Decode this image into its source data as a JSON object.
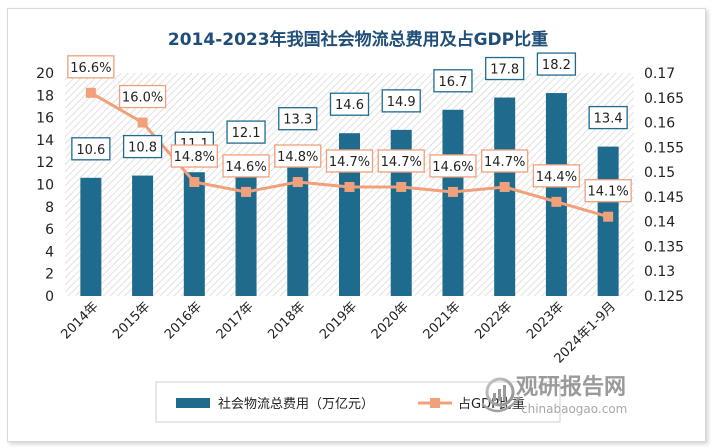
{
  "chart_data": {
    "type": "bar",
    "title": "2014-2023年我国社会物流总费用及占GDP比重",
    "categories": [
      "2014年",
      "2015年",
      "2016年",
      "2017年",
      "2018年",
      "2019年",
      "2020年",
      "2021年",
      "2022年",
      "2023年",
      "2024年1-9月"
    ],
    "series": [
      {
        "name": "社会物流总费用（万亿元）",
        "type": "bar",
        "axis": "left",
        "color": "#1f6b8e",
        "values": [
          10.6,
          10.8,
          11.1,
          12.1,
          13.3,
          14.6,
          14.9,
          16.7,
          17.8,
          18.2,
          13.4
        ],
        "labels": [
          "10.6",
          "10.8",
          "11.1",
          "12.1",
          "13.3",
          "14.6",
          "14.9",
          "16.7",
          "17.8",
          "18.2",
          "13.4"
        ]
      },
      {
        "name": "占GDP比重",
        "type": "line",
        "axis": "right",
        "color": "#f0a07a",
        "values": [
          0.166,
          0.16,
          0.148,
          0.146,
          0.148,
          0.147,
          0.147,
          0.146,
          0.147,
          0.144,
          0.141
        ],
        "labels": [
          "16.6%",
          "16.0%",
          "14.8%",
          "14.6%",
          "14.8%",
          "14.7%",
          "14.7%",
          "14.6%",
          "14.7%",
          "14.4%",
          "14.1%"
        ]
      }
    ],
    "y_left": {
      "range": [
        0,
        20
      ],
      "ticks": [
        "0",
        "2",
        "4",
        "6",
        "8",
        "10",
        "12",
        "14",
        "16",
        "18",
        "20"
      ]
    },
    "y_right": {
      "range": [
        0.125,
        0.17
      ],
      "ticks": [
        "0.125",
        "0.13",
        "0.135",
        "0.14",
        "0.145",
        "0.15",
        "0.155",
        "0.16",
        "0.165",
        "0.17"
      ]
    },
    "grid": false,
    "legend_position": "bottom"
  },
  "watermark": {
    "main": "观研报告网",
    "sub": "chinabaogao.com"
  }
}
